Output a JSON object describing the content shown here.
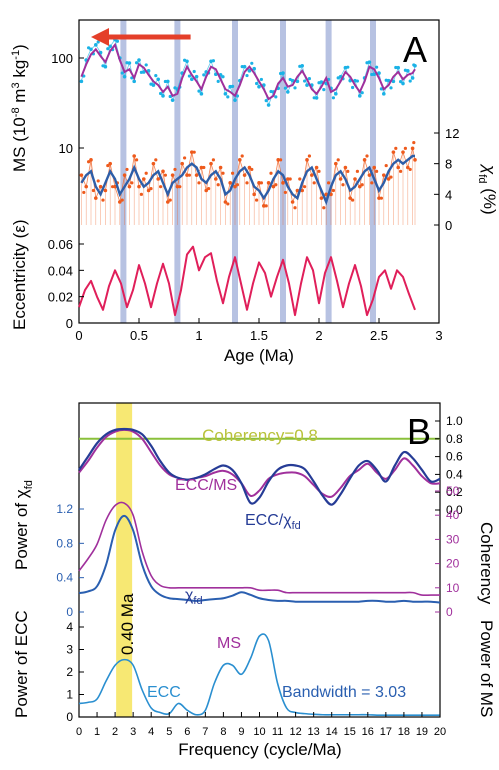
{
  "colors": {
    "ms": "#1ab2e6",
    "ms_smooth": "#a0309c",
    "chi": "#ee5a1c",
    "chi_smooth": "#2e5ea8",
    "ecc": "#e01f5a",
    "band": "#aab7dd",
    "arrow": "#e43f2a",
    "ecc_ms": "#a0309c",
    "ecc_chi": "#263c96",
    "coherency_line": "#8ac03a",
    "power_chi": "#2a5fb0",
    "power_ms": "#a0309c",
    "power_ecc": "#2a8fd0",
    "highlight": "#f6e45a"
  },
  "chart_data": [
    {
      "panel": "A",
      "type": "line",
      "xlabel": "Age (Ma)",
      "xlim": [
        0,
        3
      ],
      "xticks": [
        "0",
        "0.5",
        "1",
        "1.5",
        "2",
        "2.5",
        "3"
      ],
      "xtick_values": [
        0,
        0.5,
        1,
        1.5,
        2,
        2.5,
        3
      ],
      "band_ages": [
        0.37,
        0.82,
        1.3,
        1.7,
        2.08,
        2.45
      ],
      "arrow_x": [
        0.1,
        0.93
      ],
      "ms": {
        "ylabel": "MS (10-8 m3 kg-1)",
        "scale": "log",
        "yticks": [
          "10",
          "100"
        ],
        "smooth_x": [
          0.02,
          0.06,
          0.1,
          0.14,
          0.18,
          0.22,
          0.26,
          0.3,
          0.34,
          0.38,
          0.42,
          0.46,
          0.5,
          0.54,
          0.58,
          0.62,
          0.66,
          0.7,
          0.74,
          0.78,
          0.82,
          0.86,
          0.9,
          0.94,
          0.98,
          1.02,
          1.06,
          1.1,
          1.14,
          1.18,
          1.22,
          1.26,
          1.3,
          1.34,
          1.38,
          1.42,
          1.46,
          1.5,
          1.54,
          1.58,
          1.62,
          1.66,
          1.7,
          1.74,
          1.78,
          1.82,
          1.86,
          1.9,
          1.94,
          1.98,
          2.02,
          2.06,
          2.1,
          2.14,
          2.18,
          2.22,
          2.26,
          2.3,
          2.34,
          2.38,
          2.42,
          2.46,
          2.5,
          2.54,
          2.58,
          2.62,
          2.66,
          2.7,
          2.74,
          2.78,
          2.8
        ],
        "smooth_y": [
          62,
          85,
          110,
          125,
          105,
          90,
          120,
          140,
          95,
          70,
          75,
          60,
          85,
          78,
          65,
          55,
          50,
          42,
          48,
          38,
          40,
          60,
          80,
          65,
          55,
          45,
          62,
          80,
          75,
          58,
          45,
          42,
          38,
          50,
          70,
          80,
          68,
          55,
          45,
          35,
          38,
          52,
          60,
          48,
          50,
          62,
          72,
          58,
          45,
          40,
          48,
          60,
          42,
          45,
          55,
          70,
          62,
          50,
          42,
          55,
          80,
          75,
          60,
          45,
          50,
          62,
          70,
          58,
          65,
          68,
          75
        ],
        "scatter_y": [
          55,
          95,
          125,
          140,
          115,
          80,
          135,
          160,
          100,
          62,
          88,
          55,
          95,
          70,
          72,
          50,
          58,
          38,
          55,
          34,
          45,
          68,
          92,
          58,
          62,
          40,
          70,
          92,
          66,
          65,
          40,
          48,
          34,
          56,
          80,
          72,
          76,
          48,
          50,
          30,
          42,
          46,
          68,
          42,
          56,
          55,
          82,
          50,
          50,
          36,
          54,
          52,
          46,
          40,
          62,
          78,
          56,
          56,
          38,
          60,
          90,
          66,
          68,
          40,
          56,
          55,
          78,
          52,
          72,
          60,
          82
        ]
      },
      "chi": {
        "ylabel": "Xfd (%)",
        "ylim": [
          0,
          12
        ],
        "yticks": [
          "0",
          "4",
          "8",
          "12"
        ],
        "smooth_y": [
          5.5,
          6.5,
          7,
          5,
          4,
          5.5,
          7,
          6,
          4,
          5,
          6,
          7.5,
          6,
          5,
          5.5,
          6.5,
          7,
          5.5,
          4,
          5.5,
          6,
          6.5,
          7.5,
          8,
          7.5,
          6,
          5.5,
          6.5,
          7,
          6,
          4,
          4.5,
          6,
          7,
          7.5,
          6.5,
          5,
          4.5,
          3.5,
          4.5,
          6,
          7,
          6.5,
          5,
          4,
          3.5,
          5.5,
          7,
          7.5,
          6,
          4.5,
          3,
          5,
          6.5,
          7,
          6,
          4.5,
          5,
          6,
          7,
          7.5,
          6,
          4.5,
          5.5,
          7,
          8,
          8.5,
          8,
          8.5,
          9,
          9
        ],
        "scatter_y": [
          6.5,
          5,
          8.5,
          3.5,
          5,
          4.5,
          8,
          5,
          3,
          6.5,
          5,
          9,
          5,
          6,
          4.5,
          8,
          6,
          7,
          3,
          6.5,
          5,
          8,
          6.5,
          9.5,
          6.5,
          7.5,
          4.5,
          8,
          6,
          7.5,
          3,
          5.5,
          5,
          8.5,
          6.5,
          7.5,
          4,
          5.5,
          2.5,
          5.5,
          5,
          8.5,
          5.5,
          6,
          3,
          4.5,
          4.5,
          8.5,
          6.5,
          7.5,
          3.5,
          4,
          4,
          8,
          6,
          7.5,
          3.5,
          6,
          5,
          8.5,
          6.5,
          7.5,
          3.5,
          6.5,
          6,
          9.5,
          7.5,
          9.5,
          7.5,
          10,
          8.5
        ]
      },
      "ecc": {
        "ylabel": "Eccentricity (ε)",
        "ylim": [
          0,
          0.06
        ],
        "yticks": [
          "0",
          "0.02",
          "0.04",
          "0.06"
        ],
        "x": [
          0,
          0.05,
          0.1,
          0.15,
          0.2,
          0.25,
          0.3,
          0.35,
          0.4,
          0.45,
          0.5,
          0.55,
          0.6,
          0.65,
          0.7,
          0.75,
          0.8,
          0.85,
          0.9,
          0.95,
          1,
          1.05,
          1.1,
          1.15,
          1.2,
          1.25,
          1.3,
          1.35,
          1.4,
          1.45,
          1.5,
          1.55,
          1.6,
          1.65,
          1.7,
          1.75,
          1.8,
          1.85,
          1.9,
          1.95,
          2,
          2.05,
          2.1,
          2.15,
          2.2,
          2.25,
          2.3,
          2.35,
          2.4,
          2.45,
          2.5,
          2.55,
          2.6,
          2.65,
          2.7,
          2.75,
          2.8
        ],
        "y": [
          0.012,
          0.025,
          0.032,
          0.02,
          0.01,
          0.028,
          0.04,
          0.03,
          0.012,
          0.025,
          0.044,
          0.03,
          0.012,
          0.03,
          0.045,
          0.03,
          0.006,
          0.025,
          0.052,
          0.058,
          0.04,
          0.05,
          0.053,
          0.032,
          0.015,
          0.035,
          0.05,
          0.03,
          0.01,
          0.03,
          0.046,
          0.038,
          0.02,
          0.035,
          0.048,
          0.03,
          0.006,
          0.03,
          0.05,
          0.04,
          0.015,
          0.038,
          0.05,
          0.032,
          0.012,
          0.03,
          0.044,
          0.028,
          0.006,
          0.018,
          0.035,
          0.04,
          0.026,
          0.04,
          0.035,
          0.022,
          0.01
        ]
      }
    },
    {
      "panel": "B",
      "type": "line",
      "xlabel": "Frequency (cycle/Ma)",
      "xlim": [
        0,
        20
      ],
      "xticks": [
        "0",
        "1",
        "2",
        "3",
        "4",
        "5",
        "6",
        "7",
        "8",
        "9",
        "10",
        "11",
        "12",
        "13",
        "14",
        "15",
        "16",
        "17",
        "18",
        "19",
        "20"
      ],
      "highlight_freq": 2.5,
      "highlight_label": "0.40 Ma",
      "coherency_threshold": 0.8,
      "coherency_label": "Coherency=0.8",
      "coherency_axis": {
        "label": "Coherency",
        "ylim": [
          0,
          1
        ],
        "yticks": [
          "0.0",
          "0.2",
          "0.4",
          "0.6",
          "0.8",
          "1.0"
        ]
      },
      "ms_axis": {
        "label": "Power of MS",
        "ylim": [
          0,
          50
        ],
        "yticks": [
          "0",
          "10",
          "20",
          "30",
          "40",
          "50"
        ]
      },
      "chi_axis": {
        "label": "Power of χfd",
        "ylim": [
          0,
          1.2
        ],
        "yticks": [
          "0",
          "0.4",
          "0.8",
          "1.2"
        ]
      },
      "ecc_axis": {
        "label": "Power of ECC",
        "ylim": [
          0,
          4
        ],
        "yticks": [
          "0",
          "1",
          "2",
          "3",
          "4"
        ]
      },
      "x": [
        0,
        0.5,
        1,
        1.5,
        2,
        2.5,
        3,
        3.5,
        4,
        4.5,
        5,
        5.5,
        6,
        6.5,
        7,
        7.5,
        8,
        8.5,
        9,
        9.5,
        10,
        10.5,
        11,
        11.5,
        12,
        12.5,
        13,
        13.5,
        14,
        14.5,
        15,
        15.5,
        16,
        16.5,
        17,
        17.5,
        18,
        18.5,
        19,
        19.5,
        20
      ],
      "series": [
        {
          "name": "ECC/MS",
          "axis": "coherency",
          "values": [
            0.42,
            0.55,
            0.7,
            0.82,
            0.88,
            0.9,
            0.88,
            0.8,
            0.65,
            0.5,
            0.4,
            0.36,
            0.34,
            0.36,
            0.38,
            0.42,
            0.44,
            0.4,
            0.3,
            0.16,
            0.22,
            0.35,
            0.4,
            0.42,
            0.42,
            0.38,
            0.28,
            0.18,
            0.15,
            0.25,
            0.38,
            0.45,
            0.52,
            0.42,
            0.35,
            0.45,
            0.58,
            0.5,
            0.38,
            0.3,
            0.3
          ]
        },
        {
          "name": "ECC/χfd",
          "axis": "coherency",
          "values": [
            0.45,
            0.6,
            0.75,
            0.85,
            0.9,
            0.91,
            0.9,
            0.85,
            0.72,
            0.55,
            0.42,
            0.36,
            0.34,
            0.36,
            0.4,
            0.46,
            0.5,
            0.45,
            0.3,
            0.08,
            0.14,
            0.32,
            0.45,
            0.5,
            0.5,
            0.46,
            0.32,
            0.16,
            0.06,
            0.18,
            0.35,
            0.5,
            0.55,
            0.45,
            0.32,
            0.5,
            0.65,
            0.58,
            0.45,
            0.32,
            0.35
          ]
        },
        {
          "name": "χfd",
          "axis": "chi",
          "values": [
            0.22,
            0.24,
            0.3,
            0.55,
            0.95,
            1.12,
            0.95,
            0.55,
            0.3,
            0.2,
            0.16,
            0.15,
            0.14,
            0.13,
            0.14,
            0.15,
            0.16,
            0.19,
            0.23,
            0.2,
            0.16,
            0.14,
            0.13,
            0.13,
            0.12,
            0.12,
            0.12,
            0.12,
            0.12,
            0.12,
            0.12,
            0.12,
            0.13,
            0.13,
            0.12,
            0.12,
            0.13,
            0.12,
            0.12,
            0.12,
            0.11
          ]
        },
        {
          "name": "MS",
          "axis": "ms",
          "values": [
            17,
            22,
            28,
            38,
            44,
            45,
            40,
            25,
            15,
            11,
            10,
            10,
            10,
            10,
            10,
            10,
            10,
            10,
            10,
            10,
            9,
            9,
            9,
            8,
            8,
            8,
            8,
            8,
            8,
            8,
            8,
            8,
            8,
            8,
            8,
            8,
            8,
            8,
            7,
            7,
            7
          ]
        },
        {
          "name": "ECC",
          "axis": "ecc",
          "values": [
            0.6,
            0.65,
            0.8,
            1.6,
            2.3,
            2.55,
            2.3,
            1.2,
            0.4,
            0.2,
            0.15,
            0.6,
            0.3,
            0.1,
            0.3,
            1.5,
            2.3,
            2.3,
            1.9,
            2.6,
            3.6,
            3.4,
            1.5,
            0.4,
            0.2,
            0.15,
            0.12,
            0.1,
            0.1,
            0.1,
            0.1,
            0.1,
            0.1,
            0.08,
            0.08,
            0.08,
            0.08,
            0.08,
            0.08,
            0.08,
            0.08
          ]
        }
      ],
      "annotations": [
        "ECC/MS",
        "ECC/χfd",
        "χfd",
        "MS",
        "ECC"
      ],
      "bandwidth_label": "Bandwidth = 3.03"
    }
  ],
  "labels": {
    "panel_a": "A",
    "panel_b": "B",
    "ms_ylabel": "MS (10",
    "ms_sup1": "-8",
    "ms_mid": " m",
    "ms_sup2": "3",
    "ms_mid2": " kg",
    "ms_sup3": "-1",
    "ms_end": ")",
    "chi_ylabel_main": "χ",
    "chi_ylabel_sub": "fd",
    "chi_ylabel_end": " (%)",
    "ecc_ylabel": "Eccentricity (ε)",
    "age_label": "Age (Ma)",
    "freq_label": "Frequency (cycle/Ma)",
    "power_chi_main": "Power of χ",
    "power_chi_sub": "fd",
    "power_ms": "Power of MS",
    "power_ecc": "Power of ECC",
    "coherency": "Coherency",
    "ann_ecc_ms": "ECC/MS",
    "ann_ecc_chi_main": "ECC/χ",
    "ann_ecc_chi_sub": "fd",
    "ann_chi_main": "χ",
    "ann_chi_sub": "fd",
    "ann_ms": "MS",
    "ann_ecc": "ECC",
    "bandwidth": "Bandwidth = 3.03",
    "coherency_08": "Coherency=0.8",
    "highlight": "0.40 Ma"
  }
}
